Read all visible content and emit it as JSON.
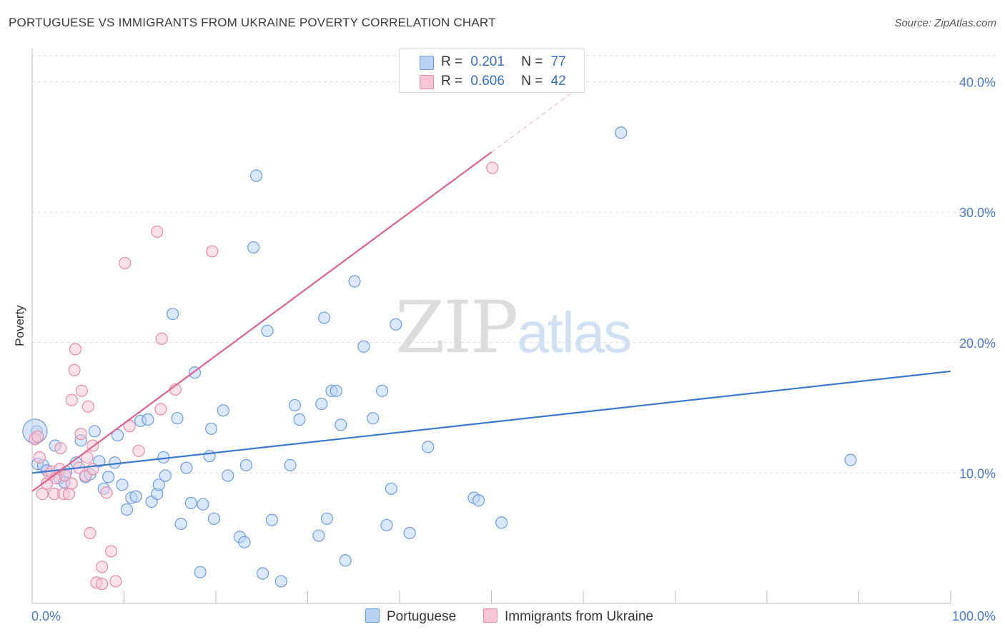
{
  "title": "PORTUGUESE VS IMMIGRANTS FROM UKRAINE POVERTY CORRELATION CHART",
  "source": "Source: ZipAtlas.com",
  "watermark": {
    "zip": "ZIP",
    "atlas": "atlas"
  },
  "legend": {
    "r_label": "R =",
    "n_label": "N =",
    "rows": [
      {
        "r": "0.201",
        "n": "77",
        "fill": "#b8d2f4",
        "stroke": "#6a9be0"
      },
      {
        "r": "0.606",
        "n": "42",
        "fill": "#f8c6d6",
        "stroke": "#e888a8"
      }
    ]
  },
  "bottom_legend": [
    "Portuguese",
    "Immigrants from Ukraine"
  ],
  "chart_data": {
    "type": "scatter",
    "title": "PORTUGUESE VS IMMIGRANTS FROM UKRAINE POVERTY CORRELATION CHART",
    "xlabel": "",
    "ylabel": "Poverty",
    "xlim": [
      0,
      100
    ],
    "ylim": [
      0,
      42
    ],
    "x_tick_labels": [
      "0.0%",
      "100.0%"
    ],
    "y_ticks": [
      10,
      20,
      30,
      40
    ],
    "y_tick_labels": [
      "10.0%",
      "20.0%",
      "30.0%",
      "40.0%"
    ],
    "grid": true,
    "series": [
      {
        "name": "Portuguese",
        "color": "#3a78d0",
        "fill": "#b8d2f4",
        "stroke": "#6a9be0",
        "trend": {
          "x0": 0,
          "y0": 10.0,
          "x1": 100,
          "y1": 17.8
        },
        "points": [
          [
            0.5,
            13.2
          ],
          [
            0.6,
            10.7
          ],
          [
            1.2,
            10.6
          ],
          [
            1.6,
            10.2
          ],
          [
            2.5,
            12.1
          ],
          [
            3.0,
            9.6
          ],
          [
            3.5,
            9.3
          ],
          [
            3.7,
            10.1
          ],
          [
            4.8,
            10.8
          ],
          [
            5.3,
            12.5
          ],
          [
            5.8,
            9.7
          ],
          [
            6.3,
            9.9
          ],
          [
            6.8,
            13.2
          ],
          [
            7.3,
            10.9
          ],
          [
            7.8,
            8.8
          ],
          [
            8.3,
            9.7
          ],
          [
            9.0,
            10.8
          ],
          [
            9.3,
            12.9
          ],
          [
            9.8,
            9.1
          ],
          [
            10.3,
            7.2
          ],
          [
            10.8,
            8.1
          ],
          [
            11.3,
            8.2
          ],
          [
            11.8,
            14.0
          ],
          [
            12.6,
            14.1
          ],
          [
            13.0,
            7.8
          ],
          [
            13.6,
            8.4
          ],
          [
            13.8,
            9.1
          ],
          [
            14.3,
            11.2
          ],
          [
            14.5,
            9.8
          ],
          [
            15.3,
            22.2
          ],
          [
            15.8,
            14.2
          ],
          [
            16.2,
            6.1
          ],
          [
            16.8,
            10.4
          ],
          [
            17.3,
            7.7
          ],
          [
            17.7,
            17.7
          ],
          [
            18.3,
            2.4
          ],
          [
            18.6,
            7.6
          ],
          [
            19.3,
            11.3
          ],
          [
            19.5,
            13.4
          ],
          [
            19.8,
            6.5
          ],
          [
            20.8,
            14.8
          ],
          [
            21.3,
            9.8
          ],
          [
            22.6,
            5.1
          ],
          [
            23.1,
            4.7
          ],
          [
            23.3,
            10.6
          ],
          [
            24.1,
            27.3
          ],
          [
            24.4,
            32.8
          ],
          [
            25.1,
            2.3
          ],
          [
            25.6,
            20.9
          ],
          [
            26.1,
            6.4
          ],
          [
            27.1,
            1.7
          ],
          [
            28.1,
            10.6
          ],
          [
            28.6,
            15.2
          ],
          [
            29.1,
            14.1
          ],
          [
            31.2,
            5.2
          ],
          [
            31.5,
            15.3
          ],
          [
            31.8,
            21.9
          ],
          [
            32.1,
            6.5
          ],
          [
            32.6,
            16.3
          ],
          [
            33.1,
            16.3
          ],
          [
            33.6,
            13.7
          ],
          [
            34.1,
            3.3
          ],
          [
            35.1,
            24.7
          ],
          [
            36.1,
            19.7
          ],
          [
            37.1,
            14.2
          ],
          [
            38.1,
            16.3
          ],
          [
            38.6,
            6.0
          ],
          [
            39.1,
            8.8
          ],
          [
            39.6,
            21.4
          ],
          [
            41.1,
            5.4
          ],
          [
            43.1,
            12.0
          ],
          [
            48.1,
            8.1
          ],
          [
            48.6,
            7.9
          ],
          [
            51.1,
            6.2
          ],
          [
            64.1,
            36.1
          ],
          [
            89.1,
            11.0
          ],
          [
            0.3,
            13.2
          ]
        ]
      },
      {
        "name": "Immigrants from Ukraine",
        "color": "#e06090",
        "fill": "#f8c6d6",
        "stroke": "#e888a8",
        "trend": {
          "x0": 0,
          "y0": 8.6,
          "x1": 50,
          "y1": 34.6,
          "dash_to_x": 60
        },
        "points": [
          [
            0.3,
            12.6
          ],
          [
            0.6,
            12.8
          ],
          [
            0.8,
            11.2
          ],
          [
            1.1,
            8.4
          ],
          [
            1.6,
            9.2
          ],
          [
            1.9,
            9.9
          ],
          [
            2.1,
            10.1
          ],
          [
            2.4,
            8.4
          ],
          [
            2.6,
            9.6
          ],
          [
            3.0,
            10.3
          ],
          [
            3.1,
            11.9
          ],
          [
            3.4,
            8.4
          ],
          [
            3.6,
            9.8
          ],
          [
            4.0,
            8.4
          ],
          [
            4.3,
            9.2
          ],
          [
            4.3,
            15.6
          ],
          [
            4.6,
            17.9
          ],
          [
            4.7,
            19.5
          ],
          [
            5.1,
            10.4
          ],
          [
            5.3,
            13.0
          ],
          [
            5.4,
            16.3
          ],
          [
            5.8,
            9.8
          ],
          [
            6.0,
            11.2
          ],
          [
            6.1,
            15.1
          ],
          [
            6.3,
            5.4
          ],
          [
            6.6,
            12.1
          ],
          [
            6.6,
            10.3
          ],
          [
            7.0,
            1.6
          ],
          [
            7.6,
            2.8
          ],
          [
            7.6,
            1.5
          ],
          [
            8.1,
            8.5
          ],
          [
            8.6,
            4.0
          ],
          [
            9.1,
            1.7
          ],
          [
            10.1,
            26.1
          ],
          [
            10.6,
            13.6
          ],
          [
            11.6,
            11.7
          ],
          [
            13.6,
            28.5
          ],
          [
            14.1,
            20.3
          ],
          [
            15.6,
            16.4
          ],
          [
            19.6,
            27.0
          ],
          [
            50.1,
            33.4
          ],
          [
            14.0,
            14.9
          ]
        ]
      }
    ]
  }
}
